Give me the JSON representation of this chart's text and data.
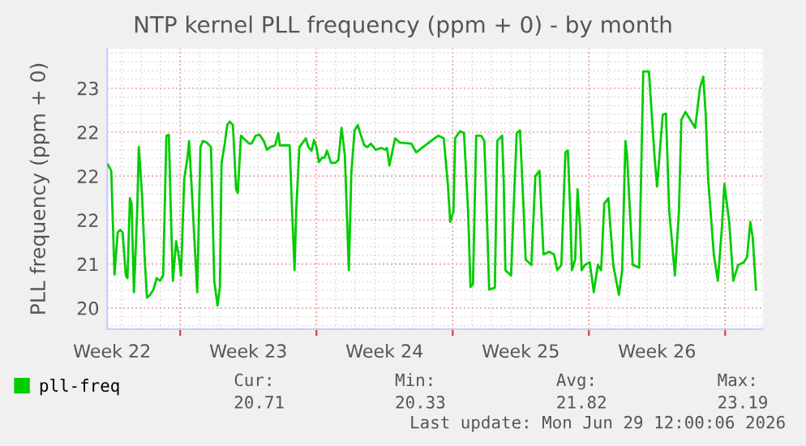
{
  "chart_data": {
    "type": "line",
    "title": "NTP kernel PLL frequency (ppm + 0) - by month",
    "ylabel": "PLL frequency (ppm + 0)",
    "xlim": [
      "2026-05-28T06:00",
      "2026-06-30T22:00"
    ],
    "ylim": [
      20.26,
      23.45
    ],
    "xticks": [
      {
        "value": "2026-05-28T12:00",
        "label": "Week 22"
      },
      {
        "value": "2026-06-01",
        "label": null
      },
      {
        "value": "2026-06-04T12:00",
        "label": "Week 23"
      },
      {
        "value": "2026-06-08",
        "label": null
      },
      {
        "value": "2026-06-11T12:00",
        "label": "Week 24"
      },
      {
        "value": "2026-06-15",
        "label": null
      },
      {
        "value": "2026-06-18T12:00",
        "label": "Week 25"
      },
      {
        "value": "2026-06-22",
        "label": null
      },
      {
        "value": "2026-06-25T12:00",
        "label": "Week 26"
      },
      {
        "value": "2026-06-29",
        "label": null
      }
    ],
    "yticks": [
      {
        "value": 20.5,
        "label": "20"
      },
      21,
      {
        "value": 21.5,
        "label": "22"
      },
      22,
      {
        "value": 22.5,
        "label": "22"
      },
      23
    ],
    "grid": true,
    "legend": "bottom",
    "marker": "none",
    "line_style": "solid",
    "series": [
      {
        "name": "pll-freq",
        "color": "#00cc00",
        "x": [
          "2026-05-28T07:00",
          "2026-05-28T11:00",
          "2026-05-28T15:00",
          "2026-05-28T19:00",
          "2026-05-28T22:00",
          "2026-05-29T01:00",
          "2026-05-29T05:00",
          "2026-05-29T07:00",
          "2026-05-29T10:00",
          "2026-05-29T12:00",
          "2026-05-29T15:00",
          "2026-05-29T19:00",
          "2026-05-29T21:00",
          "2026-05-30T01:00",
          "2026-05-30T04:00",
          "2026-05-30T07:00",
          "2026-05-30T11:00",
          "2026-05-30T15:00",
          "2026-05-30T19:00",
          "2026-05-30T23:00",
          "2026-05-31T03:00",
          "2026-05-31T07:00",
          "2026-05-31T10:00",
          "2026-05-31T13:00",
          "2026-05-31T15:00",
          "2026-05-31T19:00",
          "2026-05-31T22:00",
          "2026-06-01T01:00",
          "2026-06-01T05:00",
          "2026-06-01T09:00",
          "2026-06-01T11:00",
          "2026-06-01T15:00",
          "2026-06-01T21:00",
          "2026-06-02T01:00",
          "2026-06-02T04:00",
          "2026-06-02T09:00",
          "2026-06-02T14:00",
          "2026-06-02T18:00",
          "2026-06-02T22:00",
          "2026-06-03T01:00",
          "2026-06-03T03:00",
          "2026-06-03T07:00",
          "2026-06-03T10:00",
          "2026-06-03T13:00",
          "2026-06-03T17:00",
          "2026-06-03T21:00",
          "2026-06-03T23:00",
          "2026-06-04T03:00",
          "2026-06-04T06:00",
          "2026-06-04T13:00",
          "2026-06-04T16:00",
          "2026-06-04T21:00",
          "2026-06-05T02:00",
          "2026-06-05T07:00",
          "2026-06-05T11:00",
          "2026-06-05T15:00",
          "2026-06-05T21:00",
          "2026-06-06T01:00",
          "2026-06-06T03:00",
          "2026-06-06T15:00",
          "2026-06-06T18:00",
          "2026-06-06T21:00",
          "2026-06-06T23:00",
          "2026-06-07T03:00",
          "2026-06-07T11:00",
          "2026-06-07T14:00",
          "2026-06-07T18:00",
          "2026-06-07T21:00",
          "2026-06-08T00:00",
          "2026-06-08T03:00",
          "2026-06-08T07:00",
          "2026-06-08T10:00",
          "2026-06-08T13:00",
          "2026-06-08T18:00",
          "2026-06-08T23:00",
          "2026-06-09T03:00",
          "2026-06-09T07:00",
          "2026-06-09T11:00",
          "2026-06-09T16:00",
          "2026-06-09T19:00",
          "2026-06-09T23:00",
          "2026-06-10T03:00",
          "2026-06-10T07:00",
          "2026-06-10T11:00",
          "2026-06-10T15:00",
          "2026-06-10T19:00",
          "2026-06-11T01:00",
          "2026-06-11T08:00",
          "2026-06-11T13:00",
          "2026-06-11T15:00",
          "2026-06-11T18:00",
          "2026-06-12T01:00",
          "2026-06-12T07:00",
          "2026-06-12T21:00",
          "2026-06-13T03:00",
          "2026-06-13T17:00",
          "2026-06-14T06:00",
          "2026-06-14T13:00",
          "2026-06-14T18:00",
          "2026-06-14T21:00",
          "2026-06-15T01:00",
          "2026-06-15T03:00",
          "2026-06-15T09:00",
          "2026-06-15T14:00",
          "2026-06-15T19:00",
          "2026-06-15T22:00",
          "2026-06-16T01:00",
          "2026-06-16T05:00",
          "2026-06-16T11:00",
          "2026-06-16T15:00",
          "2026-06-16T18:00",
          "2026-06-16T21:00",
          "2026-06-17T04:00",
          "2026-06-17T07:00",
          "2026-06-17T13:00",
          "2026-06-17T15:00",
          "2026-06-17T17:00",
          "2026-06-18T00:00",
          "2026-06-18T03:00",
          "2026-06-18T07:00",
          "2026-06-18T11:00",
          "2026-06-18T15:00",
          "2026-06-18T18:00",
          "2026-06-19T01:00",
          "2026-06-19T06:00",
          "2026-06-19T11:00",
          "2026-06-19T16:00",
          "2026-06-19T23:00",
          "2026-06-20T05:00",
          "2026-06-20T09:00",
          "2026-06-20T14:00",
          "2026-06-20T19:00",
          "2026-06-20T22:00",
          "2026-06-21T01:00",
          "2026-06-21T03:00",
          "2026-06-21T07:00",
          "2026-06-21T10:00",
          "2026-06-21T13:00",
          "2026-06-21T15:00",
          "2026-06-21T19:00",
          "2026-06-22T01:00",
          "2026-06-22T06:00",
          "2026-06-22T11:00",
          "2026-06-22T15:00",
          "2026-06-22T19:00",
          "2026-06-23T00:00",
          "2026-06-23T02:00",
          "2026-06-23T06:00",
          "2026-06-23T13:00",
          "2026-06-23T17:00",
          "2026-06-23T21:00",
          "2026-06-23T23:00",
          "2026-06-24T06:00",
          "2026-06-24T14:00",
          "2026-06-24T19:00",
          "2026-06-25T02:00",
          "2026-06-25T09:00",
          "2026-06-25T12:00",
          "2026-06-25T19:00",
          "2026-06-25T23:00",
          "2026-06-26T03:00",
          "2026-06-26T06:00",
          "2026-06-26T10:00",
          "2026-06-26T15:00",
          "2026-06-26T18:00",
          "2026-06-26T23:00",
          "2026-06-27T07:00",
          "2026-06-27T11:00",
          "2026-06-27T17:00",
          "2026-06-27T21:00",
          "2026-06-28T00:00",
          "2026-06-28T03:00",
          "2026-06-28T10:00",
          "2026-06-28T15:00",
          "2026-06-28T20:00",
          "2026-06-28T23:00",
          "2026-06-29T05:00",
          "2026-06-29T10:00",
          "2026-06-29T16:00",
          "2026-06-29T23:00",
          "2026-06-30T03:00",
          "2026-06-30T07:00",
          "2026-06-30T10:00",
          "2026-06-30T14:00"
        ],
        "values": [
          22.13,
          22.06,
          20.88,
          21.36,
          21.39,
          21.36,
          20.87,
          20.84,
          21.75,
          21.69,
          20.68,
          21.6,
          22.33,
          21.78,
          21.11,
          20.62,
          20.65,
          20.71,
          20.84,
          20.81,
          20.87,
          22.46,
          22.47,
          21.42,
          20.81,
          21.26,
          21.11,
          20.87,
          21.97,
          22.21,
          22.4,
          21.72,
          20.68,
          22.33,
          22.4,
          22.38,
          22.33,
          20.81,
          20.53,
          20.74,
          22.15,
          22.37,
          22.58,
          22.62,
          22.58,
          21.85,
          21.81,
          22.46,
          22.43,
          22.37,
          22.37,
          22.46,
          22.47,
          22.4,
          22.3,
          22.33,
          22.35,
          22.49,
          22.35,
          22.35,
          21.6,
          20.93,
          21.6,
          22.33,
          22.43,
          22.33,
          22.29,
          22.41,
          22.33,
          22.16,
          22.21,
          22.21,
          22.29,
          22.15,
          22.15,
          22.18,
          22.55,
          22.24,
          20.93,
          22.03,
          22.52,
          22.58,
          22.46,
          22.35,
          22.33,
          22.37,
          22.3,
          22.32,
          22.3,
          22.32,
          22.12,
          22.43,
          22.38,
          22.37,
          22.27,
          22.37,
          22.46,
          22.43,
          21.91,
          21.48,
          21.6,
          22.43,
          22.51,
          22.49,
          21.6,
          20.74,
          20.77,
          22.46,
          22.46,
          22.4,
          21.6,
          20.71,
          20.73,
          22.4,
          22.46,
          21.91,
          20.93,
          20.87,
          21.6,
          22.49,
          22.52,
          21.72,
          21.05,
          20.99,
          22.0,
          22.06,
          21.11,
          21.14,
          21.11,
          20.93,
          20.99,
          22.27,
          22.29,
          21.6,
          20.93,
          21.05,
          21.85,
          21.42,
          20.93,
          20.99,
          21.02,
          20.68,
          20.99,
          20.93,
          21.69,
          21.75,
          21.48,
          20.99,
          20.65,
          20.93,
          22.4,
          22.24,
          20.99,
          20.96,
          23.19,
          23.19,
          22.21,
          21.88,
          22.7,
          22.71,
          21.6,
          21.3,
          20.87,
          21.6,
          22.64,
          22.73,
          22.61,
          22.55,
          23.01,
          23.13,
          22.7,
          21.97,
          21.11,
          20.81,
          21.42,
          21.91,
          21.48,
          20.81,
          20.99,
          21.02,
          21.08,
          21.48,
          21.3,
          20.71
        ]
      }
    ],
    "annotations": [
      "Cur:",
      "Min:",
      "Avg:",
      "Max:",
      "20.71",
      "20.33",
      "21.82",
      "23.19",
      "Last update: Mon Jun 29 12:00:06 2026"
    ]
  }
}
